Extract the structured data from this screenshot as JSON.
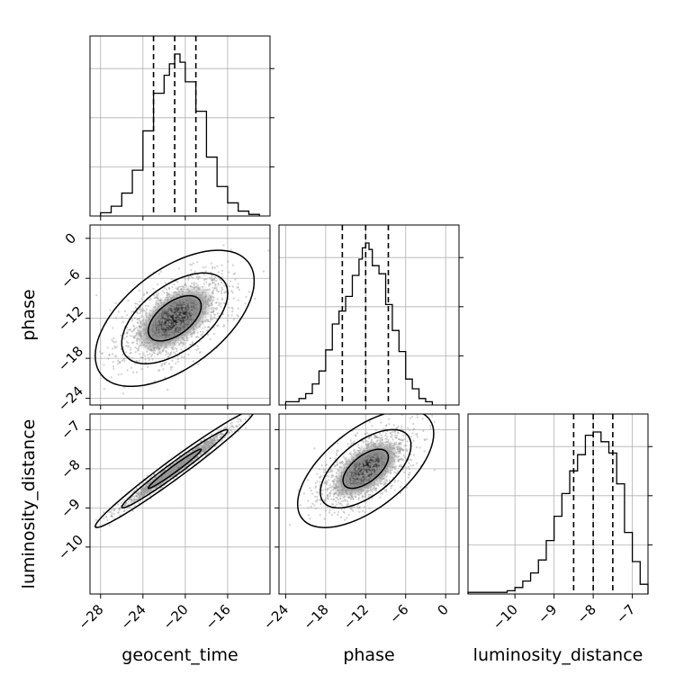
{
  "chart_data": {
    "type": "corner",
    "parameters": [
      {
        "name": "geocent_time",
        "label": "geocent_time",
        "range": [
          -29,
          -12
        ],
        "ticks": [
          -28,
          -24,
          -20,
          -16
        ],
        "tick_labels": [
          "−28",
          "−24",
          "−20",
          "−16"
        ],
        "quantiles": [
          -23,
          -21,
          -19
        ],
        "mean": -21,
        "std": 2.5
      },
      {
        "name": "phase",
        "label": "phase",
        "range": [
          -25,
          2
        ],
        "ticks": [
          -24,
          -18,
          -12,
          -6,
          0
        ],
        "tick_labels": [
          "−24",
          "−18",
          "−12",
          "−6",
          "0"
        ],
        "quantiles": [
          -15.5,
          -12,
          -8.6
        ],
        "mean": -12,
        "std": 3.4
      },
      {
        "name": "luminosity_distance",
        "label": "luminosity_distance",
        "range": [
          -11.2,
          -6.6
        ],
        "ticks": [
          -10,
          -9,
          -8,
          -7
        ],
        "tick_labels": [
          "−10",
          "−9",
          "−8",
          "−7"
        ],
        "quantiles": [
          -8.5,
          -8.0,
          -7.5
        ],
        "mean": -8.0,
        "std": 0.5
      }
    ],
    "histograms": [
      {
        "parameter": "geocent_time",
        "bin_edges": [
          -28,
          -27,
          -26,
          -25,
          -24,
          -23,
          -22,
          -21.5,
          -21,
          -20.5,
          -20,
          -19,
          -18,
          -17,
          -16,
          -15,
          -14,
          -13
        ],
        "counts": [
          2,
          6,
          14,
          28,
          52,
          75,
          86,
          93,
          99,
          94,
          82,
          64,
          36,
          18,
          8,
          3,
          1
        ]
      },
      {
        "parameter": "phase",
        "bin_edges": [
          -24,
          -22,
          -21,
          -20,
          -19,
          -18,
          -17,
          -16,
          -15,
          -14,
          -13,
          -12.5,
          -12,
          -11.5,
          -11,
          -10,
          -9,
          -8,
          -7,
          -6,
          -5,
          -4,
          -3,
          -2
        ],
        "counts": [
          2,
          4,
          7,
          13,
          21,
          34,
          50,
          58,
          67,
          80,
          90,
          97,
          100,
          96,
          86,
          81,
          62,
          46,
          33,
          16,
          10,
          4,
          2
        ]
      },
      {
        "parameter": "luminosity_distance",
        "bin_edges": [
          -11.2,
          -10.6,
          -10.2,
          -10,
          -9.8,
          -9.6,
          -9.4,
          -9.2,
          -9,
          -8.8,
          -8.6,
          -8.4,
          -8.2,
          -8,
          -7.8,
          -7.6,
          -7.4,
          -7.2,
          -7,
          -6.8,
          -6.6
        ],
        "counts": [
          1,
          1,
          2,
          4,
          8,
          13,
          21,
          33,
          48,
          62,
          76,
          86,
          98,
          100,
          94,
          87,
          68,
          38,
          20,
          6
        ]
      }
    ],
    "pairs": [
      {
        "x": "geocent_time",
        "y": "phase",
        "correlation": 0.55
      },
      {
        "x": "geocent_time",
        "y": "luminosity_distance",
        "correlation": 0.98
      },
      {
        "x": "phase",
        "y": "luminosity_distance",
        "correlation": 0.6
      }
    ],
    "contour_levels": [
      0.393,
      0.865,
      0.989
    ],
    "grid": true
  }
}
